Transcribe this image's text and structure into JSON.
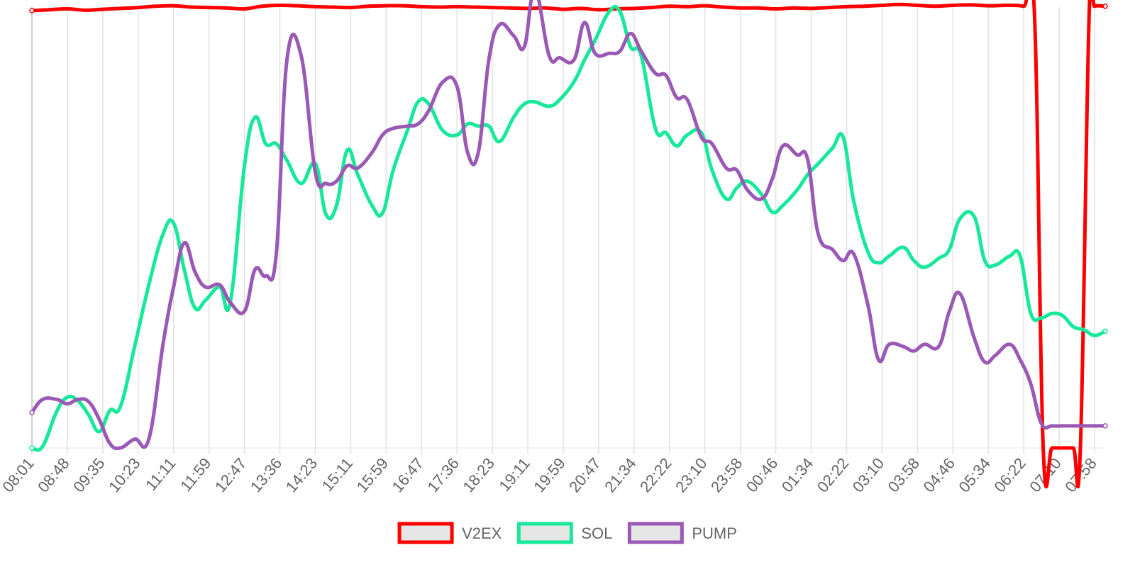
{
  "chart_data": {
    "type": "line",
    "title": "",
    "xlabel": "",
    "ylabel": "",
    "grid": true,
    "legend_position": "bottom",
    "y_axis_labels_visible": false,
    "categories": [
      "08:01",
      "08:48",
      "09:35",
      "10:23",
      "11:11",
      "11:59",
      "12:47",
      "13:36",
      "14:23",
      "15:11",
      "15:59",
      "16:47",
      "17:36",
      "18:23",
      "19:11",
      "19:59",
      "20:47",
      "21:34",
      "22:22",
      "23:10",
      "23:58",
      "00:46",
      "01:34",
      "02:22",
      "03:10",
      "03:58",
      "04:46",
      "05:34",
      "06:22",
      "07:10",
      "07:58"
    ],
    "value_scale": "relative, 0 = chart bottom, 100 = chart top (no y-axis values printed)",
    "series": [
      {
        "name": "V2EX",
        "color": "#ff0000",
        "x": [
          0,
          0.5,
          1,
          1.5,
          2,
          2.5,
          3,
          3.5,
          4,
          4.5,
          5,
          5.5,
          6,
          6.5,
          7,
          7.5,
          8,
          8.5,
          9,
          9.5,
          10,
          10.5,
          11,
          11.5,
          12,
          12.5,
          13,
          13.5,
          14,
          14.5,
          15,
          15.5,
          16,
          16.5,
          17,
          17.5,
          18,
          18.5,
          19,
          19.5,
          20,
          20.5,
          21,
          21.5,
          22,
          22.5,
          23,
          23.5,
          24,
          24.5,
          25,
          25.5,
          26,
          26.5,
          27,
          27.5,
          28,
          28.3,
          28.55,
          28.8,
          29.1,
          29.4,
          29.6,
          29.85,
          30,
          30.3
        ],
        "values": [
          99.2,
          99.4,
          99.6,
          99.3,
          99.5,
          99.7,
          99.9,
          100.2,
          100.3,
          100.0,
          99.9,
          99.8,
          99.6,
          100.2,
          100.4,
          100.3,
          100.1,
          100.0,
          99.9,
          100.2,
          100.3,
          100.3,
          100.1,
          100.0,
          100.1,
          100.0,
          99.9,
          99.8,
          99.7,
          99.8,
          99.5,
          99.7,
          99.4,
          99.6,
          99.7,
          99.9,
          100.2,
          100.1,
          100.3,
          100.0,
          99.8,
          99.8,
          99.6,
          99.8,
          99.7,
          99.9,
          100.1,
          100.2,
          100.4,
          100.6,
          100.4,
          100.2,
          100.4,
          100.5,
          100.3,
          100.4,
          100.2,
          99.0,
          0,
          0,
          0,
          0,
          0,
          99.0,
          100.2,
          100.2
        ]
      },
      {
        "name": "SOL",
        "color": "#17e89a",
        "x": [
          0,
          0.3,
          0.7,
          1.0,
          1.3,
          1.6,
          1.9,
          2.2,
          2.5,
          2.9,
          3.3,
          3.7,
          4.0,
          4.3,
          4.6,
          4.9,
          5.3,
          5.6,
          6.0,
          6.3,
          6.6,
          6.9,
          7.2,
          7.6,
          8.0,
          8.3,
          8.6,
          8.9,
          9.2,
          9.6,
          9.9,
          10.2,
          10.6,
          10.9,
          11.2,
          11.6,
          12.0,
          12.3,
          12.6,
          12.9,
          13.2,
          13.6,
          13.9,
          14.2,
          14.6,
          14.9,
          15.3,
          15.6,
          15.9,
          16.3,
          16.6,
          16.9,
          17.2,
          17.6,
          17.9,
          18.2,
          18.5,
          18.9,
          19.2,
          19.6,
          19.9,
          20.2,
          20.6,
          20.9,
          21.2,
          21.6,
          21.9,
          22.2,
          22.6,
          22.9,
          23.2,
          23.6,
          23.9,
          24.2,
          24.6,
          24.9,
          25.2,
          25.6,
          25.9,
          26.2,
          26.6,
          26.9,
          27.2,
          27.6,
          27.9,
          28.2,
          28.5,
          28.8,
          29.1,
          29.4,
          29.7,
          30.0,
          30.3
        ],
        "values": [
          0,
          0.3,
          8.3,
          11.5,
          10.7,
          7.5,
          3.7,
          8.5,
          9.4,
          23.0,
          37.0,
          48.5,
          51.0,
          40.5,
          31.8,
          33.5,
          36.5,
          33.0,
          64.0,
          75.0,
          69.0,
          69.0,
          65.2,
          60.0,
          64.5,
          53.0,
          55.0,
          67.5,
          62.0,
          55.0,
          53.3,
          63.0,
          72.0,
          78.5,
          78.0,
          72.0,
          71.0,
          73.5,
          73.0,
          73.0,
          69.5,
          75.0,
          78.0,
          78.5,
          77.5,
          79.0,
          83.0,
          88.0,
          92.5,
          99.0,
          99.0,
          91.0,
          89.0,
          72.5,
          71.5,
          68.5,
          71.0,
          71.5,
          63.0,
          56.5,
          59.0,
          60.5,
          57.5,
          53.5,
          55.0,
          58.5,
          62.0,
          64.5,
          68.0,
          70.5,
          56.0,
          44.5,
          42.0,
          43.5,
          45.5,
          42.5,
          41.0,
          43.0,
          45.0,
          52.0,
          52.5,
          42.5,
          41.5,
          43.5,
          43.5,
          30.5,
          29.5,
          30.5,
          30.0,
          27.5,
          26.8,
          25.5,
          26.5
        ]
      },
      {
        "name": "PUMP",
        "color": "#9b59b6",
        "x": [
          0,
          0.3,
          0.7,
          1.0,
          1.3,
          1.6,
          1.9,
          2.2,
          2.5,
          2.9,
          3.3,
          3.7,
          4.0,
          4.3,
          4.6,
          4.9,
          5.3,
          5.6,
          6.0,
          6.3,
          6.6,
          6.9,
          7.2,
          7.6,
          8.0,
          8.3,
          8.6,
          8.9,
          9.2,
          9.6,
          9.9,
          10.2,
          10.6,
          10.9,
          11.2,
          11.6,
          12.0,
          12.3,
          12.6,
          12.9,
          13.2,
          13.6,
          13.9,
          14.2,
          14.6,
          14.9,
          15.3,
          15.6,
          15.9,
          16.3,
          16.6,
          16.9,
          17.2,
          17.6,
          17.9,
          18.2,
          18.5,
          18.9,
          19.2,
          19.6,
          19.9,
          20.2,
          20.6,
          20.9,
          21.2,
          21.6,
          21.9,
          22.2,
          22.6,
          22.9,
          23.2,
          23.6,
          23.9,
          24.2,
          24.6,
          24.9,
          25.2,
          25.6,
          25.9,
          26.2,
          26.6,
          26.9,
          27.2,
          27.6,
          27.9,
          28.2,
          28.5,
          28.8,
          29.1,
          29.4,
          29.7,
          30.0,
          30.3
        ],
        "values": [
          8.0,
          11.0,
          11.0,
          10.0,
          11.0,
          10.5,
          6.5,
          1.0,
          0,
          2.0,
          2.0,
          23.5,
          36.5,
          46.5,
          40.0,
          36.5,
          37.0,
          33.0,
          31.0,
          40.5,
          39.0,
          44.0,
          88.0,
          89.0,
          62.5,
          60.0,
          60.5,
          64.0,
          63.5,
          67.0,
          71.0,
          72.5,
          73.0,
          73.5,
          76.5,
          83.0,
          82.0,
          67.0,
          67.0,
          88.0,
          96.0,
          93.5,
          91.0,
          104.0,
          89.0,
          88.5,
          88.0,
          96.5,
          89.5,
          89.5,
          90.0,
          94.0,
          90.0,
          85.0,
          84.5,
          79.5,
          79.0,
          70.5,
          69.0,
          63.5,
          63.0,
          58.5,
          56.5,
          61.0,
          68.5,
          66.5,
          65.5,
          48.5,
          45.0,
          42.5,
          44.0,
          32.5,
          20.0,
          23.5,
          23.0,
          22.0,
          23.5,
          23.0,
          31.0,
          35.0,
          25.0,
          19.5,
          21.0,
          23.5,
          20.0,
          14.5,
          5.5,
          5.0,
          5.0,
          5.0,
          5.0,
          5.0,
          5.0
        ]
      }
    ]
  }
}
